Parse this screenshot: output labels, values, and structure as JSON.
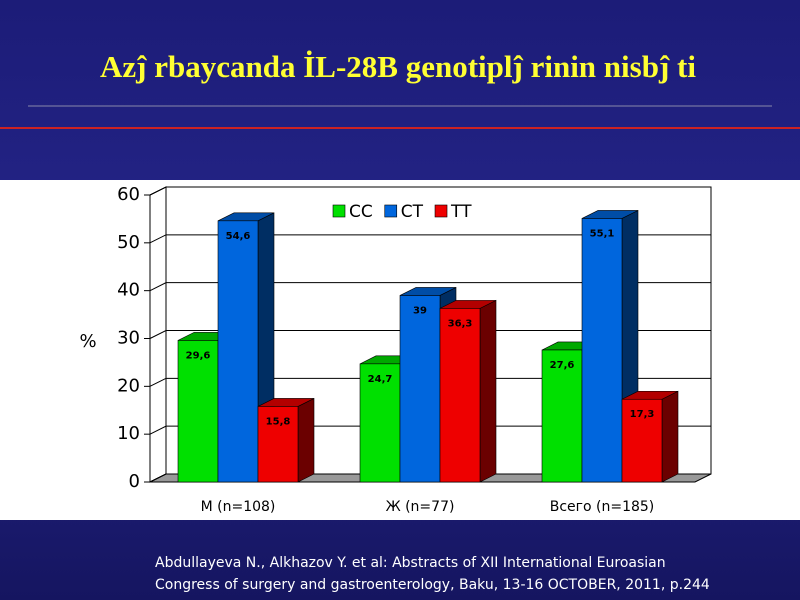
{
  "chart_data": {
    "type": "bar",
    "title": "Azĵ rbaycanda İL-28B genotiplĵ rinin nisbĵ ti",
    "y_label": "%",
    "categories": [
      "M (n=108)",
      "Ж (n=77)",
      "Всего (n=185)"
    ],
    "series": [
      {
        "name": "CC",
        "color": "#00e000",
        "values": [
          29.6,
          24.7,
          27.6
        ],
        "value_labels": [
          "29,6",
          "24,7",
          "27,6"
        ]
      },
      {
        "name": "CT",
        "color": "#0066dd",
        "values": [
          54.6,
          39,
          55.1
        ],
        "value_labels": [
          "54,6",
          "39",
          "55,1"
        ]
      },
      {
        "name": "TT",
        "color": "#ee0000",
        "values": [
          15.8,
          36.3,
          17.3
        ],
        "value_labels": [
          "15,8",
          "36,3",
          "17,3"
        ]
      }
    ],
    "ylim": [
      0,
      60
    ],
    "yticks": [
      0,
      10,
      20,
      30,
      40,
      50,
      60
    ],
    "grid": true,
    "footnote": [
      "Abdullayeva N., Alkhazov Y. et al: Abstracts of XII International Euroasian",
      "Congress of surgery and gastroenterology, Baku, 13-16 OCTOBER, 2011, p.244"
    ]
  }
}
